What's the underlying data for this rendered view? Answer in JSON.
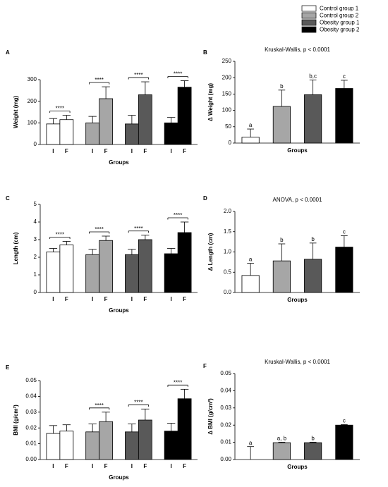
{
  "legend": [
    {
      "name": "Control group 1",
      "color": "#ffffff"
    },
    {
      "name": "Control group 2",
      "color": "#a6a6a6"
    },
    {
      "name": "Obesity group 1",
      "color": "#595959"
    },
    {
      "name": "Obesity group 2",
      "color": "#000000"
    }
  ],
  "chart_data": [
    {
      "type": "bar",
      "label": "A",
      "ylabel": "Weight (mg)",
      "xlabel": "Groups",
      "categories": [
        "I",
        "F"
      ],
      "ylim": [
        0,
        300
      ],
      "yticks": [
        0,
        100,
        200,
        300
      ],
      "series": [
        {
          "values": [
            95,
            115
          ],
          "errors": [
            25,
            20
          ]
        },
        {
          "values": [
            100,
            212
          ],
          "errors": [
            30,
            55
          ]
        },
        {
          "values": [
            95,
            230
          ],
          "errors": [
            40,
            60
          ]
        },
        {
          "values": [
            100,
            265
          ],
          "errors": [
            25,
            30
          ]
        }
      ],
      "significance": [
        "****",
        "****",
        "****",
        "****"
      ]
    },
    {
      "type": "bar",
      "label": "B",
      "title": "Kruskal-Wallis, p < 0.0001",
      "ylabel": "Δ Weight (mg)",
      "xlabel": "Groups",
      "ylim": [
        0,
        250
      ],
      "yticks": [
        0,
        50,
        100,
        150,
        200,
        250
      ],
      "values": [
        18,
        112,
        148,
        167
      ],
      "errors": [
        25,
        50,
        45,
        25
      ],
      "letters": [
        "a",
        "b",
        "b,c",
        "c"
      ]
    },
    {
      "type": "bar",
      "label": "C",
      "ylabel": "Length (cm)",
      "xlabel": "Groups",
      "categories": [
        "I",
        "F"
      ],
      "ylim": [
        0,
        5
      ],
      "yticks": [
        0,
        1,
        2,
        3,
        4,
        5
      ],
      "series": [
        {
          "values": [
            2.3,
            2.7
          ],
          "errors": [
            0.2,
            0.2
          ]
        },
        {
          "values": [
            2.15,
            2.95
          ],
          "errors": [
            0.3,
            0.25
          ]
        },
        {
          "values": [
            2.15,
            3.0
          ],
          "errors": [
            0.3,
            0.25
          ]
        },
        {
          "values": [
            2.2,
            3.4
          ],
          "errors": [
            0.3,
            0.6
          ]
        }
      ],
      "significance": [
        "****",
        "****",
        "****",
        "****"
      ]
    },
    {
      "type": "bar",
      "label": "D",
      "title": "ANOVA, p < 0.0001",
      "ylabel": "Δ Length (cm)",
      "xlabel": "Groups",
      "ylim": [
        0,
        2
      ],
      "yticks": [
        {
          "value": 0,
          "label": "0.0"
        },
        {
          "value": 0.5,
          "label": "0.5"
        },
        {
          "value": 1,
          "label": "1.0"
        },
        {
          "value": 1.5,
          "label": "1.5"
        },
        {
          "value": 2,
          "label": "2.0"
        }
      ],
      "values": [
        0.42,
        0.78,
        0.82,
        1.12
      ],
      "errors": [
        0.3,
        0.42,
        0.4,
        0.28
      ],
      "letters": [
        "a",
        "b",
        "b",
        "c"
      ]
    },
    {
      "type": "bar",
      "label": "E",
      "ylabel": "BMI (g/cm²)",
      "xlabel": "Groups",
      "categories": [
        "I",
        "F"
      ],
      "ylim": [
        0,
        0.05
      ],
      "yticks": [
        {
          "value": 0,
          "label": "0.00"
        },
        {
          "value": 0.01,
          "label": "0.01"
        },
        {
          "value": 0.02,
          "label": "0.02"
        },
        {
          "value": 0.03,
          "label": "0.03"
        },
        {
          "value": 0.04,
          "label": "0.04"
        },
        {
          "value": 0.05,
          "label": "0.05"
        }
      ],
      "series": [
        {
          "values": [
            0.0165,
            0.018
          ],
          "errors": [
            0.005,
            0.004
          ]
        },
        {
          "values": [
            0.0175,
            0.024
          ],
          "errors": [
            0.005,
            0.006
          ]
        },
        {
          "values": [
            0.0175,
            0.025
          ],
          "errors": [
            0.005,
            0.007
          ]
        },
        {
          "values": [
            0.018,
            0.0385
          ],
          "errors": [
            0.005,
            0.006
          ]
        }
      ],
      "significance": [
        null,
        "****",
        "****",
        "****"
      ]
    },
    {
      "type": "bar",
      "label": "F",
      "title": "Kruskal-Wallis, p < 0.0001",
      "ylabel": "Δ BMI (g/cm²)",
      "xlabel": "Groups",
      "ylim": [
        0,
        0.05
      ],
      "yticks": [
        {
          "value": 0,
          "label": "0.00"
        },
        {
          "value": 0.01,
          "label": "0.01"
        },
        {
          "value": 0.02,
          "label": "0.02"
        },
        {
          "value": 0.03,
          "label": "0.03"
        },
        {
          "value": 0.04,
          "label": "0.04"
        },
        {
          "value": 0.05,
          "label": "0.05"
        }
      ],
      "values": [
        0,
        0.0098,
        0.0098,
        0.02
      ],
      "errors": [
        0.0075,
        0.0003,
        0.0003,
        0.0003
      ],
      "letters": [
        "a",
        "a, b",
        "b",
        "c"
      ]
    }
  ]
}
